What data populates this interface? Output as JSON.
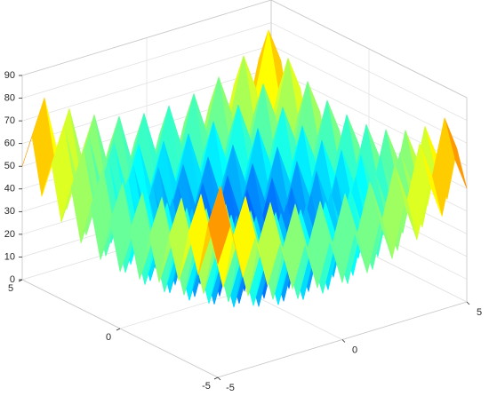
{
  "chart_data": {
    "type": "surface",
    "x": [
      -5,
      -4.5,
      -4,
      -3.5,
      -3,
      -2.5,
      -2,
      -1.5,
      -1,
      -0.5,
      0,
      0.5,
      1,
      1.5,
      2,
      2.5,
      3,
      3.5,
      4,
      4.5,
      5
    ],
    "y": [
      -5,
      -4.5,
      -4,
      -3.5,
      -3,
      -2.5,
      -2,
      -1.5,
      -1,
      -0.5,
      0,
      0.5,
      1,
      1.5,
      2,
      2.5,
      3,
      3.5,
      4,
      4.5,
      5
    ],
    "z": [
      [
        50,
        65.25,
        41,
        57.25,
        34,
        51.25,
        29,
        47.25,
        26,
        45.25,
        25,
        45.25,
        26,
        47.25,
        29,
        51.25,
        34,
        57.25,
        41,
        65.25,
        50
      ],
      [
        65.25,
        80.5,
        56.25,
        72.5,
        49.25,
        66.5,
        44.25,
        62.5,
        41.25,
        60.5,
        40.25,
        60.5,
        41.25,
        62.5,
        44.25,
        66.5,
        49.25,
        72.5,
        56.25,
        80.5,
        65.25
      ],
      [
        41,
        56.25,
        32,
        48.25,
        25,
        42.25,
        20,
        38.25,
        17,
        36.25,
        16,
        36.25,
        17,
        38.25,
        20,
        42.25,
        25,
        48.25,
        32,
        56.25,
        41
      ],
      [
        57.25,
        72.5,
        48.25,
        64.5,
        41.25,
        58.5,
        36.25,
        54.5,
        33.25,
        52.5,
        32.25,
        52.5,
        33.25,
        54.5,
        36.25,
        58.5,
        41.25,
        64.5,
        48.25,
        72.5,
        57.25
      ],
      [
        34,
        49.25,
        25,
        41.25,
        18,
        35.25,
        13,
        31.25,
        10,
        29.25,
        9,
        29.25,
        10,
        31.25,
        13,
        35.25,
        18,
        41.25,
        25,
        49.25,
        34
      ],
      [
        51.25,
        66.5,
        42.25,
        58.5,
        35.25,
        52.5,
        30.25,
        48.5,
        27.25,
        46.5,
        26.25,
        46.5,
        27.25,
        48.5,
        30.25,
        52.5,
        35.25,
        58.5,
        42.25,
        66.5,
        51.25
      ],
      [
        29,
        44.25,
        20,
        36.25,
        13,
        30.25,
        8,
        26.25,
        5,
        24.25,
        4,
        24.25,
        5,
        26.25,
        8,
        30.25,
        13,
        36.25,
        20,
        44.25,
        29
      ],
      [
        47.25,
        62.5,
        38.25,
        54.5,
        31.25,
        48.5,
        26.25,
        44.5,
        23.25,
        42.5,
        22.25,
        42.5,
        23.25,
        44.5,
        26.25,
        48.5,
        31.25,
        54.5,
        38.25,
        62.5,
        47.25
      ],
      [
        26,
        41.25,
        17,
        33.25,
        10,
        27.25,
        5,
        23.25,
        2,
        21.25,
        1,
        21.25,
        2,
        23.25,
        5,
        27.25,
        10,
        33.25,
        17,
        41.25,
        26
      ],
      [
        45.25,
        60.5,
        36.25,
        52.5,
        29.25,
        46.5,
        24.25,
        42.5,
        21.25,
        40.5,
        20.25,
        40.5,
        21.25,
        42.5,
        24.25,
        46.5,
        29.25,
        52.5,
        36.25,
        60.5,
        45.25
      ],
      [
        25,
        40.25,
        16,
        32.25,
        9,
        26.25,
        4,
        22.25,
        1,
        20.25,
        0,
        20.25,
        1,
        22.25,
        4,
        26.25,
        9,
        32.25,
        16,
        40.25,
        25
      ],
      [
        45.25,
        60.5,
        36.25,
        52.5,
        29.25,
        46.5,
        24.25,
        42.5,
        21.25,
        40.5,
        20.25,
        40.5,
        21.25,
        42.5,
        24.25,
        46.5,
        29.25,
        52.5,
        36.25,
        60.5,
        45.25
      ],
      [
        26,
        41.25,
        17,
        33.25,
        10,
        27.25,
        5,
        23.25,
        2,
        21.25,
        1,
        21.25,
        2,
        23.25,
        5,
        27.25,
        10,
        33.25,
        17,
        41.25,
        26
      ],
      [
        47.25,
        62.5,
        38.25,
        54.5,
        31.25,
        48.5,
        26.25,
        44.5,
        23.25,
        42.5,
        22.25,
        42.5,
        23.25,
        44.5,
        26.25,
        48.5,
        31.25,
        54.5,
        38.25,
        62.5,
        47.25
      ],
      [
        29,
        44.25,
        20,
        36.25,
        13,
        30.25,
        8,
        26.25,
        5,
        24.25,
        4,
        24.25,
        5,
        26.25,
        8,
        30.25,
        13,
        36.25,
        20,
        44.25,
        29
      ],
      [
        51.25,
        66.5,
        42.25,
        58.5,
        35.25,
        52.5,
        30.25,
        48.5,
        27.25,
        46.5,
        26.25,
        46.5,
        27.25,
        48.5,
        30.25,
        52.5,
        35.25,
        58.5,
        42.25,
        66.5,
        51.25
      ],
      [
        34,
        49.25,
        25,
        41.25,
        18,
        35.25,
        13,
        31.25,
        10,
        29.25,
        9,
        29.25,
        10,
        31.25,
        13,
        35.25,
        18,
        41.25,
        25,
        49.25,
        34
      ],
      [
        57.25,
        72.5,
        48.25,
        64.5,
        41.25,
        58.5,
        36.25,
        54.5,
        33.25,
        52.5,
        32.25,
        52.5,
        33.25,
        54.5,
        36.25,
        58.5,
        41.25,
        64.5,
        48.25,
        72.5,
        57.25
      ],
      [
        41,
        56.25,
        32,
        48.25,
        25,
        42.25,
        20,
        38.25,
        17,
        36.25,
        16,
        36.25,
        17,
        38.25,
        20,
        42.25,
        25,
        48.25,
        32,
        56.25,
        41
      ],
      [
        65.25,
        80.5,
        56.25,
        72.5,
        49.25,
        66.5,
        44.25,
        62.5,
        41.25,
        60.5,
        40.25,
        60.5,
        41.25,
        62.5,
        44.25,
        66.5,
        49.25,
        72.5,
        56.25,
        80.5,
        65.25
      ],
      [
        50,
        65.25,
        41,
        57.25,
        34,
        51.25,
        29,
        47.25,
        26,
        45.25,
        25,
        45.25,
        26,
        47.25,
        29,
        51.25,
        34,
        57.25,
        41,
        65.25,
        50
      ]
    ],
    "colormap": "jet",
    "xlim": [
      -5,
      5
    ],
    "xticks": [
      -5,
      0,
      5
    ],
    "ylim": [
      -5,
      5
    ],
    "yticks": [
      -5,
      0,
      5
    ],
    "zlim": [
      0,
      90
    ],
    "zticks": [
      0,
      10,
      20,
      30,
      40,
      50,
      60,
      70,
      80,
      90
    ],
    "grid": true
  }
}
